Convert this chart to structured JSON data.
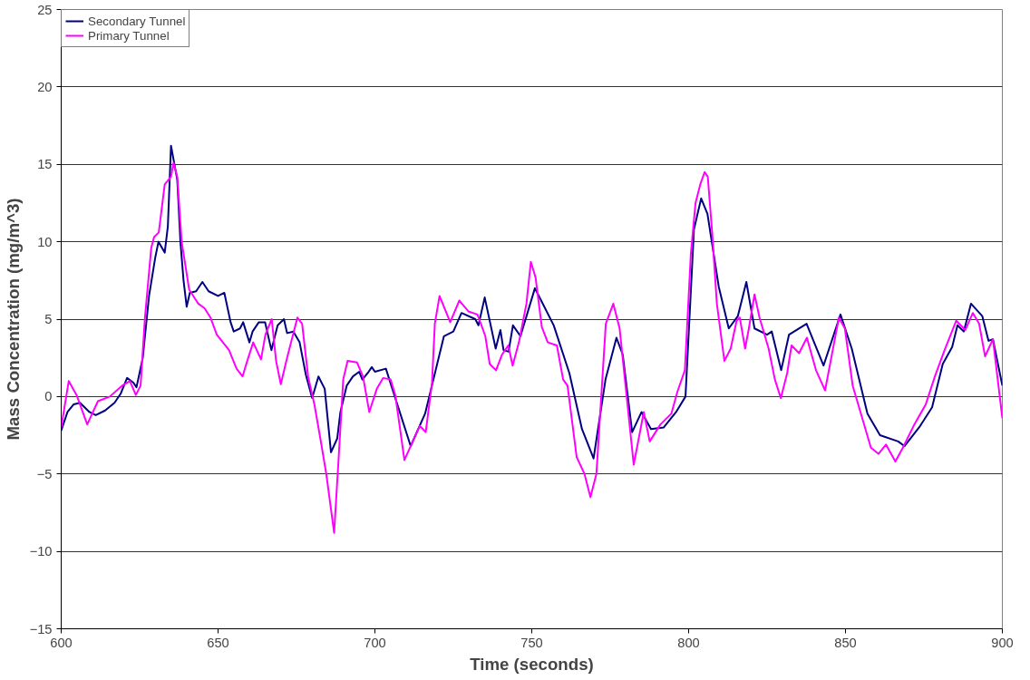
{
  "chart_data": {
    "type": "line",
    "xlabel": "Time (seconds)",
    "ylabel": "Mass Concentration (mg/m^3)",
    "xlim": [
      600,
      900
    ],
    "xticks": [
      600,
      650,
      700,
      750,
      800,
      850,
      900
    ],
    "ylim": [
      -15,
      25
    ],
    "yticks": [
      -15,
      -10,
      -5,
      0,
      5,
      10,
      15,
      20,
      25
    ],
    "grid": "y",
    "legend": "top left",
    "line_style": "solid",
    "marker": "none",
    "series": [
      {
        "name": "Secondary Tunnel",
        "color": "#000080",
        "x": [
          600,
          602,
          604,
          606,
          609,
          611,
          614,
          617,
          619,
          621,
          623,
          624,
          626,
          628,
          630,
          631,
          633,
          634,
          635,
          637,
          638,
          639,
          640,
          641,
          643,
          645,
          647,
          650,
          652,
          654,
          655,
          657,
          658,
          660,
          661,
          663,
          665,
          667,
          669,
          671,
          672,
          674,
          676,
          678,
          680,
          682,
          684,
          686,
          688,
          689,
          691,
          693,
          695,
          696,
          698,
          699,
          700,
          703.5,
          711.4,
          716,
          722,
          725,
          727.6,
          732,
          733,
          735,
          738.5,
          740,
          741,
          742.6,
          744,
          746.4,
          751,
          753,
          757,
          762,
          766,
          769.7,
          773.5,
          777,
          779,
          782,
          785,
          788,
          792,
          796,
          799,
          801.7,
          804,
          806,
          809.6,
          812.8,
          815.7,
          818.4,
          821,
          825,
          826.5,
          829.5,
          832,
          837.6,
          843,
          848.4,
          852,
          857,
          861,
          866.8,
          868.8,
          873.8,
          877.6,
          881,
          884,
          885.7,
          887.7,
          890,
          893.6,
          895.6,
          897,
          900
        ],
        "values": [
          -2.2,
          -1.0,
          -0.5,
          -0.4,
          -1.0,
          -1.2,
          -0.9,
          -0.4,
          0.2,
          1.2,
          0.9,
          0.6,
          2.5,
          6.5,
          9.0,
          10.0,
          9.3,
          11.0,
          16.2,
          14.0,
          10.0,
          7.5,
          5.8,
          6.7,
          6.8,
          7.4,
          6.8,
          6.5,
          6.7,
          4.8,
          4.2,
          4.4,
          4.8,
          3.5,
          4.2,
          4.8,
          4.8,
          3.0,
          4.6,
          5.0,
          4.1,
          4.2,
          3.5,
          1.4,
          -0.1,
          1.3,
          0.5,
          -3.6,
          -2.7,
          -1.0,
          0.7,
          1.3,
          1.6,
          1.1,
          1.6,
          1.9,
          1.6,
          1.8,
          -3.2,
          -1.1,
          3.9,
          4.2,
          5.4,
          5.0,
          4.6,
          6.4,
          3.1,
          4.3,
          3.0,
          2.9,
          4.6,
          3.9,
          7.0,
          6.2,
          4.6,
          1.5,
          -2.1,
          -4.0,
          1.1,
          3.8,
          2.7,
          -2.3,
          -1.0,
          -2.1,
          -2.0,
          -1.0,
          0.0,
          10.8,
          12.8,
          11.8,
          7.1,
          4.4,
          5.2,
          7.4,
          4.4,
          4.0,
          4.2,
          1.7,
          4.0,
          4.7,
          2.0,
          5.3,
          3.1,
          -1.1,
          -2.5,
          -2.9,
          -3.2,
          -1.9,
          -0.7,
          2.1,
          3.2,
          4.6,
          4.2,
          6.0,
          5.2,
          3.6,
          3.7,
          0.7
        ]
      },
      {
        "name": "Primary Tunnel",
        "color": "#ff00ff",
        "x": [
          600,
          602.4,
          604.9,
          608.3,
          611.7,
          615.5,
          619.4,
          621.9,
          623.8,
          625.3,
          626.7,
          628.7,
          629.6,
          631.1,
          633,
          635,
          635.8,
          637,
          638.4,
          640.8,
          643.7,
          645.7,
          647.6,
          649.6,
          653.5,
          655.9,
          657.8,
          659.3,
          661.2,
          663.7,
          665.1,
          667.1,
          668.5,
          670,
          672,
          675.3,
          676.8,
          678.7,
          680.7,
          682.6,
          684.5,
          687,
          688.4,
          689.9,
          691.3,
          694.3,
          696.2,
          698.2,
          700.6,
          702.6,
          705,
          706.5,
          709.4,
          714.3,
          716.2,
          718.2,
          719.1,
          720.6,
          724,
          726.9,
          729.8,
          732.7,
          735.2,
          736.6,
          738.6,
          740.5,
          742.5,
          743.9,
          745.9,
          748.3,
          749.7,
          751.2,
          753.2,
          755.1,
          758,
          760,
          761.4,
          764.3,
          766.8,
          768.7,
          770.6,
          773.6,
          776,
          778,
          780.4,
          782.5,
          785.7,
          787.6,
          791,
          794.5,
          796.4,
          798.8,
          800.7,
          802.2,
          803.7,
          805.1,
          806.1,
          807.5,
          809,
          811.4,
          813.4,
          815.3,
          816.3,
          818,
          819.2,
          821,
          822.6,
          825.5,
          827.5,
          829.4,
          831.4,
          832.8,
          835.2,
          837.7,
          840.6,
          843.5,
          846.4,
          847.9,
          849.8,
          852.3,
          855.2,
          858.1,
          860.5,
          862.9,
          865.9,
          868.3,
          871.7,
          875.6,
          878.5,
          881.4,
          885.3,
          888.2,
          890.6,
          892.6,
          894.5,
          897,
          900
        ],
        "values": [
          -2.0,
          1.0,
          0.1,
          -1.8,
          -0.3,
          0.0,
          0.7,
          1.0,
          0.1,
          0.7,
          5.1,
          9.6,
          10.3,
          10.6,
          13.7,
          14.2,
          15.1,
          14.2,
          10.0,
          6.9,
          6.0,
          5.7,
          5.1,
          4.0,
          3.0,
          1.8,
          1.3,
          2.3,
          3.5,
          2.4,
          4.0,
          5.0,
          2.3,
          0.8,
          2.5,
          5.1,
          4.7,
          1.3,
          -0.5,
          -2.7,
          -5.0,
          -8.8,
          -4.1,
          1.1,
          2.3,
          2.2,
          1.3,
          -1.0,
          0.5,
          1.2,
          1.1,
          0.1,
          -4.1,
          -1.9,
          -2.3,
          0.9,
          4.7,
          6.5,
          4.8,
          6.2,
          5.5,
          5.3,
          3.9,
          2.1,
          1.7,
          2.7,
          3.3,
          2.0,
          3.5,
          6.0,
          8.7,
          7.7,
          4.5,
          3.5,
          3.3,
          1.1,
          0.7,
          -3.9,
          -5.0,
          -6.5,
          -5.0,
          4.7,
          6.0,
          4.4,
          -0.3,
          -4.4,
          -1.0,
          -2.9,
          -1.8,
          -1.1,
          0.3,
          1.7,
          9.2,
          12.5,
          13.7,
          14.5,
          14.2,
          10.6,
          6.0,
          2.3,
          3.1,
          4.9,
          5.1,
          3.1,
          4.4,
          6.6,
          5.1,
          3.1,
          1.1,
          -0.1,
          1.5,
          3.3,
          2.8,
          3.8,
          1.7,
          0.4,
          3.5,
          5.1,
          4.4,
          0.7,
          -1.3,
          -3.3,
          -3.7,
          -3.1,
          -4.2,
          -3.3,
          -1.9,
          -0.5,
          1.3,
          2.9,
          4.9,
          4.3,
          5.4,
          4.7,
          2.6,
          3.7,
          -1.4
        ]
      }
    ]
  }
}
